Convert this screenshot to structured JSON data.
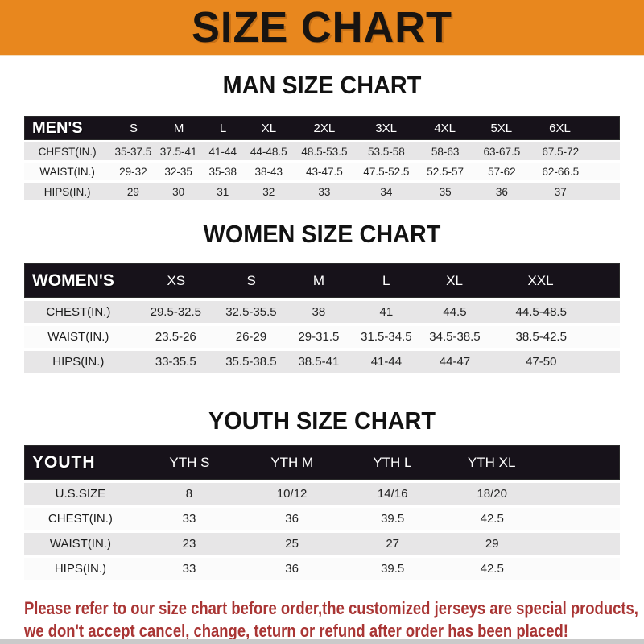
{
  "banner": {
    "title": "SIZE CHART",
    "bg_color": "#E8871E",
    "text_color": "#181411"
  },
  "colors": {
    "header_bar": "#17121a",
    "row_gray": "#E7E6E7",
    "row_white": "#FBFBFB",
    "footer_red": "#A93534"
  },
  "sections": [
    {
      "heading": "MAN SIZE CHART",
      "header_label": "MEN'S",
      "columns": [
        "S",
        "M",
        "L",
        "XL",
        "2XL",
        "3XL",
        "4XL",
        "5XL",
        "6XL"
      ],
      "rows": [
        {
          "label": "CHEST(IN.)",
          "values": [
            "35-37.5",
            "37.5-41",
            "41-44",
            "44-48.5",
            "48.5-53.5",
            "53.5-58",
            "58-63",
            "63-67.5",
            "67.5-72"
          ]
        },
        {
          "label": "WAIST(IN.)",
          "values": [
            "29-32",
            "32-35",
            "35-38",
            "38-43",
            "43-47.5",
            "47.5-52.5",
            "52.5-57",
            "57-62",
            "62-66.5"
          ]
        },
        {
          "label": "HIPS(IN.)",
          "values": [
            "29",
            "30",
            "31",
            "32",
            "33",
            "34",
            "35",
            "36",
            "37"
          ]
        }
      ]
    },
    {
      "heading": "WOMEN SIZE CHART",
      "header_label": "WOMEN'S",
      "columns": [
        "XS",
        "S",
        "M",
        "L",
        "XL",
        "XXL"
      ],
      "rows": [
        {
          "label": "CHEST(IN.)",
          "values": [
            "29.5-32.5",
            "32.5-35.5",
            "38",
            "41",
            "44.5",
            "44.5-48.5"
          ]
        },
        {
          "label": "WAIST(IN.)",
          "values": [
            "23.5-26",
            "26-29",
            "29-31.5",
            "31.5-34.5",
            "34.5-38.5",
            "38.5-42.5"
          ]
        },
        {
          "label": "HIPS(IN.)",
          "values": [
            "33-35.5",
            "35.5-38.5",
            "38.5-41",
            "41-44",
            "44-47",
            "47-50"
          ]
        }
      ]
    },
    {
      "heading": "YOUTH SIZE CHART",
      "header_label": "YOUTH",
      "columns": [
        "YTH S",
        "YTH M",
        "YTH L",
        "YTH XL"
      ],
      "rows": [
        {
          "label": "U.S.SIZE",
          "values": [
            "8",
            "10/12",
            "14/16",
            "18/20"
          ]
        },
        {
          "label": "CHEST(IN.)",
          "values": [
            "33",
            "36",
            "39.5",
            "42.5"
          ]
        },
        {
          "label": "WAIST(IN.)",
          "values": [
            "23",
            "25",
            "27",
            "29"
          ]
        },
        {
          "label": "HIPS(IN.)",
          "values": [
            "33",
            "36",
            "39.5",
            "42.5"
          ]
        }
      ]
    }
  ],
  "footer": {
    "line1": "Please refer to our size chart before order,the customized jerseys are special products,",
    "line2": "we don't accept cancel, change, teturn or refund after order has been placed!"
  }
}
